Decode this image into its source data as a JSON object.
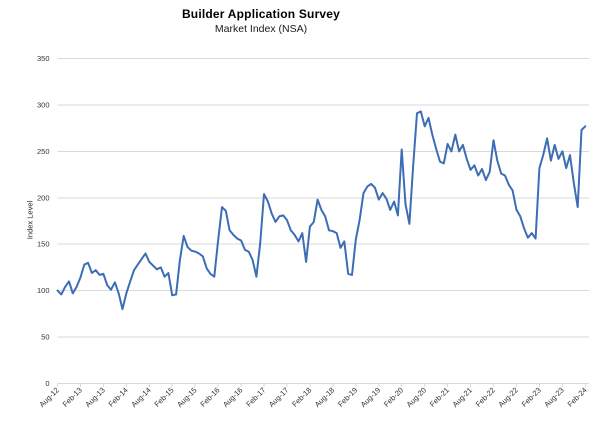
{
  "chart": {
    "title": "Builder Application Survey",
    "subtitle": "Market Index (NSA)",
    "y_axis_label": "Index Level"
  },
  "chart_data": {
    "type": "line",
    "title": "Builder Application Survey",
    "subtitle": "Market Index (NSA)",
    "xlabel": "",
    "ylabel": "Index Level",
    "ylim": [
      0,
      350
    ],
    "yticks": [
      0,
      50,
      100,
      150,
      200,
      250,
      300,
      350
    ],
    "grid": true,
    "legend": false,
    "line_color": "#3C6DB5",
    "grid_color": "#d9d9d9",
    "tick_text_color": "#333333",
    "frequency": "monthly",
    "x_start": "Aug-12",
    "x_end": "Feb-24",
    "x_tick_every_n_months": 6,
    "x_tick_labels": [
      "Aug-12",
      "Feb-13",
      "Aug-13",
      "Feb-14",
      "Aug-14",
      "Feb-15",
      "Aug-15",
      "Feb-16",
      "Aug-16",
      "Feb-17",
      "Aug-17",
      "Feb-18",
      "Aug-18",
      "Feb-19",
      "Aug-19",
      "Feb-20",
      "Aug-20",
      "Feb-21",
      "Aug-21",
      "Feb-22",
      "Aug-22",
      "Feb-23",
      "Aug-23",
      "Feb-24"
    ],
    "values": [
      100,
      96,
      104,
      110,
      97,
      104,
      114,
      128,
      130,
      119,
      122,
      117,
      118,
      106,
      101,
      109,
      97,
      80,
      97,
      110,
      122,
      128,
      134,
      140,
      131,
      127,
      123,
      125,
      115,
      119,
      95,
      96,
      133,
      159,
      147,
      143,
      142,
      140,
      137,
      124,
      118,
      115,
      154,
      190,
      186,
      165,
      160,
      156,
      154,
      144,
      142,
      133,
      115,
      151,
      204,
      196,
      183,
      174,
      180,
      181,
      176,
      165,
      160,
      153,
      162,
      131,
      169,
      174,
      198,
      187,
      180,
      165,
      164,
      162,
      146,
      153,
      118,
      117,
      155,
      176,
      205,
      212,
      215,
      211,
      198,
      205,
      199,
      187,
      196,
      181,
      252,
      193,
      172,
      235,
      291,
      293,
      277,
      286,
      268,
      253,
      239,
      237,
      258,
      250,
      268,
      250,
      257,
      242,
      230,
      235,
      224,
      231,
      219,
      228,
      262,
      240,
      226,
      224,
      214,
      208,
      187,
      180,
      167,
      157,
      162,
      156,
      232,
      246,
      264,
      240,
      257,
      242,
      250,
      232,
      246,
      216,
      190,
      273,
      277
    ]
  }
}
